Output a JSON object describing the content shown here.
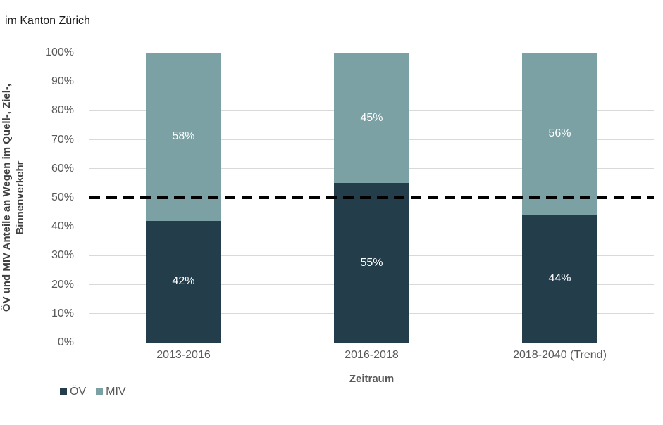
{
  "title": "im Kanton Zürich",
  "colors": {
    "oev": "#243D4B",
    "miv": "#7BA1A5",
    "gridline": "#D9D9D9",
    "tick_text": "#595959",
    "axis_title_text": "#404040",
    "reference_line": "#000000",
    "bar_label_text": "#FFFFFF"
  },
  "chart_data": {
    "type": "bar",
    "stacked": true,
    "title": "im Kanton Zürich",
    "categories": [
      "2013-2016",
      "2016-2018",
      "2018-2040 (Trend)"
    ],
    "series": [
      {
        "name": "ÖV",
        "color": "#243D4B",
        "values": [
          42,
          55,
          44
        ],
        "labels": [
          "42%",
          "55%",
          "44%"
        ]
      },
      {
        "name": "MIV",
        "color": "#7BA1A5",
        "values": [
          58,
          45,
          56
        ],
        "labels": [
          "58%",
          "45%",
          "56%"
        ]
      }
    ],
    "xlabel": "Zeitraum",
    "ylabel": "ÖV und MIV Anteile an Wegen im Quell-, Ziel-, Binnenverkehr",
    "ylim": [
      0,
      100
    ],
    "yticks": [
      "0%",
      "10%",
      "20%",
      "30%",
      "40%",
      "50%",
      "60%",
      "70%",
      "80%",
      "90%",
      "100%"
    ],
    "grid": "horizontal",
    "reference_line": {
      "value": 50,
      "style": "dashed",
      "color": "#000000"
    },
    "legend_position": "bottom-left",
    "data_labels": "inside-center"
  }
}
